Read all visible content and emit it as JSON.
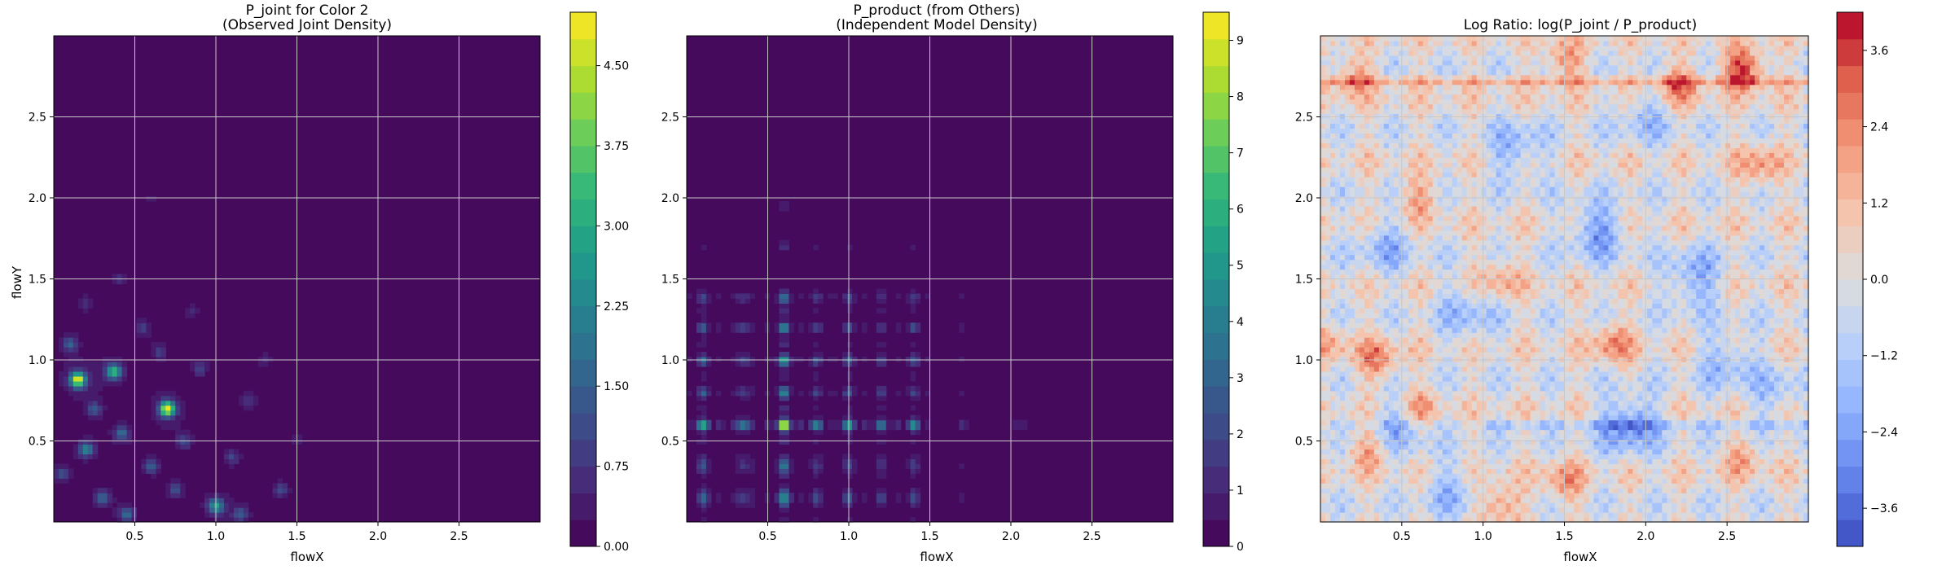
{
  "chart_data": [
    {
      "type": "heatmap",
      "title_line1": "P_joint for Color 2",
      "title_line2": "(Observed Joint Density)",
      "xlabel": "flowX",
      "ylabel": "flowY",
      "xlim": [
        0,
        3
      ],
      "ylim": [
        0,
        3
      ],
      "x_ticks": [
        "0.5",
        "1.0",
        "1.5",
        "2.0",
        "2.5"
      ],
      "y_ticks": [
        "0.5",
        "1.0",
        "1.5",
        "2.0",
        "2.5"
      ],
      "grid": true,
      "colormap": "viridis",
      "colorbar": {
        "min": 0,
        "max": 5.0,
        "levels": 20,
        "tick_values": [
          0,
          0.75,
          1.5,
          2.25,
          3.0,
          3.75,
          4.5
        ],
        "tick_labels": [
          "0.00",
          "0.75",
          "1.50",
          "2.25",
          "3.00",
          "3.75",
          "4.50"
        ]
      },
      "hotspots": [
        {
          "x": 0.15,
          "y": 0.88,
          "value": 4.6
        },
        {
          "x": 0.7,
          "y": 0.7,
          "value": 4.8
        },
        {
          "x": 0.37,
          "y": 0.93,
          "value": 3.2
        },
        {
          "x": 1.0,
          "y": 0.1,
          "value": 2.6
        },
        {
          "x": 0.2,
          "y": 0.45,
          "value": 2.0
        },
        {
          "x": 0.42,
          "y": 0.55,
          "value": 1.6
        },
        {
          "x": 0.1,
          "y": 1.1,
          "value": 1.4
        },
        {
          "x": 0.6,
          "y": 0.35,
          "value": 1.3
        },
        {
          "x": 0.3,
          "y": 0.15,
          "value": 1.4
        },
        {
          "x": 0.45,
          "y": 0.05,
          "value": 1.5
        },
        {
          "x": 0.8,
          "y": 0.5,
          "value": 1.1
        },
        {
          "x": 1.1,
          "y": 0.4,
          "value": 0.9
        },
        {
          "x": 1.4,
          "y": 0.2,
          "value": 1.0
        },
        {
          "x": 0.9,
          "y": 0.95,
          "value": 0.9
        },
        {
          "x": 0.55,
          "y": 1.2,
          "value": 0.8
        },
        {
          "x": 1.2,
          "y": 0.75,
          "value": 0.7
        },
        {
          "x": 0.25,
          "y": 0.7,
          "value": 1.2
        },
        {
          "x": 0.75,
          "y": 0.2,
          "value": 1.0
        },
        {
          "x": 0.05,
          "y": 0.3,
          "value": 1.0
        },
        {
          "x": 1.15,
          "y": 0.05,
          "value": 1.3
        },
        {
          "x": 0.65,
          "y": 1.05,
          "value": 0.8
        },
        {
          "x": 0.85,
          "y": 1.3,
          "value": 0.5
        },
        {
          "x": 1.3,
          "y": 1.0,
          "value": 0.5
        },
        {
          "x": 1.5,
          "y": 0.5,
          "value": 0.4
        },
        {
          "x": 0.6,
          "y": 2.0,
          "value": 0.3
        },
        {
          "x": 0.4,
          "y": 1.5,
          "value": 0.5
        },
        {
          "x": 0.2,
          "y": 1.35,
          "value": 0.6
        }
      ]
    },
    {
      "type": "heatmap",
      "title_line1": "P_product (from Others)",
      "title_line2": "(Independent Model Density)",
      "xlabel": "flowX",
      "ylabel": "",
      "xlim": [
        0,
        3
      ],
      "ylim": [
        0,
        3
      ],
      "x_ticks": [
        "0.5",
        "1.0",
        "1.5",
        "2.0",
        "2.5"
      ],
      "y_ticks": [
        "0.5",
        "1.0",
        "1.5",
        "2.0",
        "2.5"
      ],
      "grid": true,
      "colormap": "viridis",
      "colorbar": {
        "min": 0,
        "max": 9.5,
        "levels": 20,
        "tick_values": [
          0,
          1,
          2,
          3,
          4,
          5,
          6,
          7,
          8,
          9
        ],
        "tick_labels": [
          "0",
          "1",
          "2",
          "3",
          "4",
          "5",
          "6",
          "7",
          "8",
          "9"
        ]
      },
      "marginal_x_peaks": [
        {
          "x": 0.1,
          "weight": 0.55
        },
        {
          "x": 0.35,
          "weight": 0.4
        },
        {
          "x": 0.6,
          "weight": 1.0
        },
        {
          "x": 0.8,
          "weight": 0.35
        },
        {
          "x": 1.0,
          "weight": 0.45
        },
        {
          "x": 1.2,
          "weight": 0.3
        },
        {
          "x": 1.4,
          "weight": 0.4
        },
        {
          "x": 1.7,
          "weight": 0.12
        },
        {
          "x": 2.05,
          "weight": 0.08
        }
      ],
      "marginal_y_peaks": [
        {
          "y": 0.15,
          "weight": 0.55
        },
        {
          "y": 0.35,
          "weight": 0.4
        },
        {
          "y": 0.6,
          "weight": 1.0
        },
        {
          "y": 0.8,
          "weight": 0.35
        },
        {
          "y": 1.0,
          "weight": 0.45
        },
        {
          "y": 1.2,
          "weight": 0.35
        },
        {
          "y": 1.38,
          "weight": 0.3
        },
        {
          "y": 1.7,
          "weight": 0.1
        },
        {
          "y": 1.95,
          "weight": 0.08
        }
      ],
      "peak_value": 9.3
    },
    {
      "type": "heatmap",
      "title_line1": "Log Ratio: log(P_joint / P_product)",
      "title_line2": "",
      "xlabel": "flowX",
      "ylabel": "",
      "xlim": [
        0,
        3
      ],
      "ylim": [
        0,
        3
      ],
      "x_ticks": [
        "0.5",
        "1.0",
        "1.5",
        "2.0",
        "2.5"
      ],
      "y_ticks": [
        "0.5",
        "1.0",
        "1.5",
        "2.0",
        "2.5"
      ],
      "grid": true,
      "colormap": "coolwarm",
      "colorbar": {
        "min": -4.2,
        "max": 4.2,
        "levels": 20,
        "tick_values": [
          -3.6,
          -2.4,
          -1.2,
          0.0,
          1.2,
          2.4,
          3.6
        ],
        "tick_labels": [
          "−3.6",
          "−2.4",
          "−1.2",
          "0.0",
          "1.2",
          "2.4",
          "3.6"
        ]
      },
      "positive_regions": [
        {
          "x": 2.6,
          "y": 2.8,
          "value": 3.8
        },
        {
          "x": 2.2,
          "y": 2.7,
          "value": 2.5
        },
        {
          "x": 1.5,
          "y": 2.85,
          "value": 2.2
        },
        {
          "x": 0.2,
          "y": 2.75,
          "value": 2.0
        },
        {
          "x": 2.7,
          "y": 2.2,
          "value": 2.0
        },
        {
          "x": 0.6,
          "y": 2.0,
          "value": 1.8
        },
        {
          "x": 1.8,
          "y": 1.1,
          "value": 2.2
        },
        {
          "x": 0.35,
          "y": 1.0,
          "value": 2.4
        },
        {
          "x": 0.6,
          "y": 0.7,
          "value": 2.2
        },
        {
          "x": 1.1,
          "y": 0.1,
          "value": 2.4
        },
        {
          "x": 1.5,
          "y": 0.25,
          "value": 2.0
        },
        {
          "x": 0.3,
          "y": 0.45,
          "value": 1.8
        },
        {
          "x": 2.6,
          "y": 0.4,
          "value": 1.6
        },
        {
          "x": 1.1,
          "y": 1.5,
          "value": 1.7
        },
        {
          "x": 0.05,
          "y": 1.1,
          "value": 1.5
        }
      ],
      "negative_regions": [
        {
          "x": 1.7,
          "y": 1.8,
          "value": -2.4
        },
        {
          "x": 2.3,
          "y": 1.5,
          "value": -2.2
        },
        {
          "x": 1.9,
          "y": 0.6,
          "value": -3.0
        },
        {
          "x": 1.2,
          "y": 2.3,
          "value": -1.8
        },
        {
          "x": 0.9,
          "y": 1.3,
          "value": -1.6
        },
        {
          "x": 2.5,
          "y": 1.0,
          "value": -1.7
        },
        {
          "x": 0.4,
          "y": 1.7,
          "value": -1.6
        },
        {
          "x": 0.5,
          "y": 0.6,
          "value": -2.0
        },
        {
          "x": 2.0,
          "y": 2.5,
          "value": -1.4
        },
        {
          "x": 0.8,
          "y": 0.2,
          "value": -1.5
        },
        {
          "x": 2.8,
          "y": 0.8,
          "value": -1.2
        }
      ]
    }
  ]
}
